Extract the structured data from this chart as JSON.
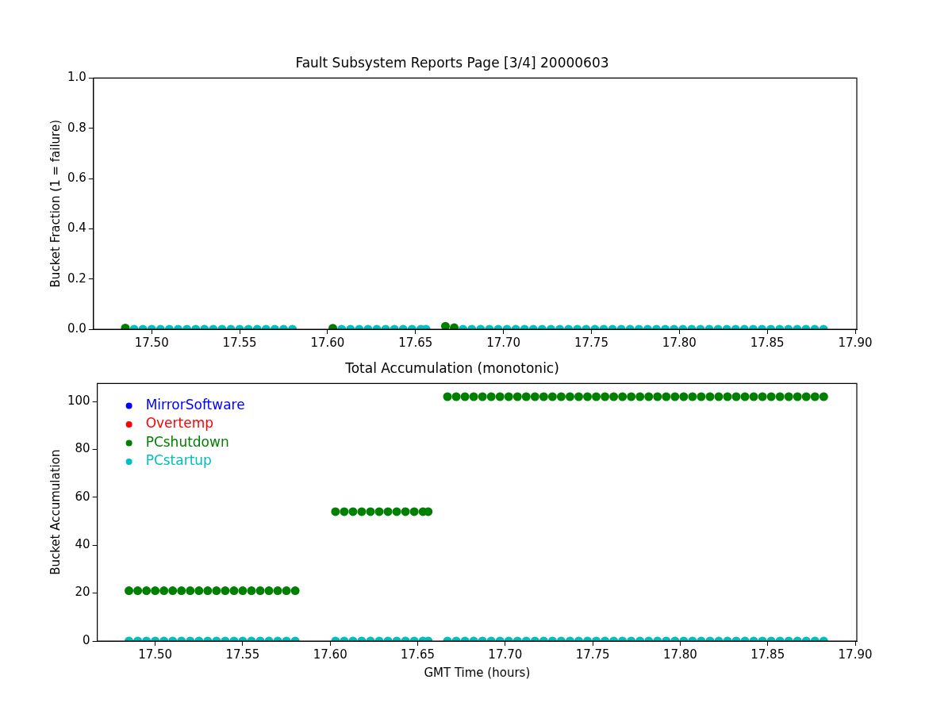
{
  "chart_data": [
    {
      "type": "scatter",
      "title": "Fault Subsystem Reports Page [3/4] 20000603",
      "ylabel": "Bucket Fraction (1 = failure)",
      "x": [
        17.485,
        17.49,
        17.495,
        17.5,
        17.505,
        17.51,
        17.515,
        17.52,
        17.525,
        17.53,
        17.535,
        17.54,
        17.545,
        17.55,
        17.555,
        17.56,
        17.565,
        17.57,
        17.575,
        17.58,
        17.603,
        17.608,
        17.613,
        17.618,
        17.623,
        17.628,
        17.633,
        17.638,
        17.643,
        17.648,
        17.653,
        17.656,
        17.667,
        17.672,
        17.677,
        17.682,
        17.687,
        17.692,
        17.697,
        17.702,
        17.707,
        17.712,
        17.717,
        17.722,
        17.727,
        17.732,
        17.737,
        17.742,
        17.747,
        17.752,
        17.757,
        17.762,
        17.767,
        17.772,
        17.777,
        17.782,
        17.787,
        17.792,
        17.797,
        17.802,
        17.807,
        17.812,
        17.817,
        17.822,
        17.827,
        17.832,
        17.837,
        17.842,
        17.847,
        17.852,
        17.857,
        17.862,
        17.867,
        17.872,
        17.877,
        17.882
      ],
      "series": [
        {
          "color": "#008000",
          "values": [
            0.005,
            null,
            null,
            null,
            null,
            null,
            null,
            null,
            null,
            null,
            null,
            null,
            null,
            null,
            null,
            null,
            null,
            null,
            null,
            null,
            0.004,
            null,
            null,
            null,
            null,
            null,
            null,
            null,
            null,
            null,
            null,
            null,
            0.012,
            0.006,
            null,
            null,
            null,
            null,
            null,
            null,
            null,
            null,
            null,
            null,
            null,
            null,
            null,
            null,
            null,
            null,
            null,
            null,
            null,
            null,
            null,
            null,
            null,
            null,
            null,
            null,
            null,
            null,
            null,
            null,
            null,
            null,
            null,
            null,
            null,
            null,
            null,
            null,
            null,
            null,
            null,
            null
          ]
        },
        {
          "color": "#00bfbf",
          "values": [
            null,
            0,
            0,
            0,
            0,
            0,
            0,
            0,
            0,
            0,
            0,
            0,
            0,
            0,
            0,
            0,
            0,
            0,
            0,
            0,
            null,
            0,
            0,
            0,
            0,
            0,
            0,
            0,
            0,
            0,
            0,
            0,
            null,
            null,
            0,
            0,
            0,
            0,
            0,
            0,
            0,
            0,
            0,
            0,
            0,
            0,
            0,
            0,
            0,
            0,
            0,
            0,
            0,
            0,
            0,
            0,
            0,
            0,
            0,
            0,
            0,
            0,
            0,
            0,
            0,
            0,
            0,
            0,
            0,
            0,
            0,
            0,
            0,
            0,
            0,
            0
          ]
        }
      ],
      "xlim": [
        17.4669,
        17.9009
      ],
      "xticks": [
        {
          "value": 17.5,
          "label": "17.50"
        },
        {
          "value": 17.55,
          "label": "17.55"
        },
        {
          "value": 17.6,
          "label": "17.60"
        },
        {
          "value": 17.65,
          "label": "17.65"
        },
        {
          "value": 17.7,
          "label": "17.70"
        },
        {
          "value": 17.75,
          "label": "17.75"
        },
        {
          "value": 17.8,
          "label": "17.80"
        },
        {
          "value": 17.85,
          "label": "17.85"
        },
        {
          "value": 17.9,
          "label": "17.90"
        }
      ],
      "ylim": [
        0,
        1
      ],
      "yticks": [
        {
          "value": 0,
          "label": "0.0"
        },
        {
          "value": 0.2,
          "label": "0.2"
        },
        {
          "value": 0.4,
          "label": "0.4"
        },
        {
          "value": 0.6,
          "label": "0.6"
        },
        {
          "value": 0.8,
          "label": "0.8"
        },
        {
          "value": 1,
          "label": "1.0"
        }
      ],
      "marker": "circle",
      "grid": false,
      "legend": false
    },
    {
      "type": "scatter",
      "title": "Total Accumulation (monotonic)",
      "xlabel": "GMT Time (hours)",
      "ylabel": "Bucket Accumulation",
      "x": [
        17.485,
        17.49,
        17.495,
        17.5,
        17.505,
        17.51,
        17.515,
        17.52,
        17.525,
        17.53,
        17.535,
        17.54,
        17.545,
        17.55,
        17.555,
        17.56,
        17.565,
        17.57,
        17.575,
        17.58,
        17.603,
        17.608,
        17.613,
        17.618,
        17.623,
        17.628,
        17.633,
        17.638,
        17.643,
        17.648,
        17.653,
        17.656,
        17.667,
        17.672,
        17.677,
        17.682,
        17.687,
        17.692,
        17.697,
        17.702,
        17.707,
        17.712,
        17.717,
        17.722,
        17.727,
        17.732,
        17.737,
        17.742,
        17.747,
        17.752,
        17.757,
        17.762,
        17.767,
        17.772,
        17.777,
        17.782,
        17.787,
        17.792,
        17.797,
        17.802,
        17.807,
        17.812,
        17.817,
        17.822,
        17.827,
        17.832,
        17.837,
        17.842,
        17.847,
        17.852,
        17.857,
        17.862,
        17.867,
        17.872,
        17.877,
        17.882
      ],
      "series": [
        {
          "name": "MirrorSoftware",
          "color": "#0000ff",
          "values": [
            null,
            null,
            null,
            null,
            null,
            null,
            null,
            null,
            null,
            null,
            null,
            null,
            null,
            null,
            null,
            null,
            null,
            null,
            null,
            null,
            null,
            null,
            null,
            null,
            null,
            null,
            null,
            null,
            null,
            null,
            null,
            null,
            null,
            null,
            null,
            null,
            null,
            null,
            null,
            null,
            null,
            null,
            null,
            null,
            null,
            null,
            null,
            null,
            null,
            null,
            null,
            null,
            null,
            null,
            null,
            null,
            null,
            null,
            null,
            null,
            null,
            null,
            null,
            null,
            null,
            null,
            null,
            null,
            null,
            null,
            null,
            null,
            null,
            null,
            null,
            null
          ]
        },
        {
          "name": "Overtemp",
          "color": "#ff0000",
          "values": [
            null,
            null,
            null,
            null,
            null,
            null,
            null,
            null,
            null,
            null,
            null,
            null,
            null,
            null,
            null,
            null,
            null,
            null,
            null,
            null,
            null,
            null,
            null,
            null,
            null,
            null,
            null,
            null,
            null,
            null,
            null,
            null,
            null,
            null,
            null,
            null,
            null,
            null,
            null,
            null,
            null,
            null,
            null,
            null,
            null,
            null,
            null,
            null,
            null,
            null,
            null,
            null,
            null,
            null,
            null,
            null,
            null,
            null,
            null,
            null,
            null,
            null,
            null,
            null,
            null,
            null,
            null,
            null,
            null,
            null,
            null,
            null,
            null,
            null,
            null,
            null
          ]
        },
        {
          "name": "PCshutdown",
          "color": "#008000",
          "values": [
            21,
            21,
            21,
            21,
            21,
            21,
            21,
            21,
            21,
            21,
            21,
            21,
            21,
            21,
            21,
            21,
            21,
            21,
            21,
            21,
            54,
            54,
            54,
            54,
            54,
            54,
            54,
            54,
            54,
            54,
            54,
            54,
            102,
            102,
            102,
            102,
            102,
            102,
            102,
            102,
            102,
            102,
            102,
            102,
            102,
            102,
            102,
            102,
            102,
            102,
            102,
            102,
            102,
            102,
            102,
            102,
            102,
            102,
            102,
            102,
            102,
            102,
            102,
            102,
            102,
            102,
            102,
            102,
            102,
            102,
            102,
            102,
            102,
            102,
            102,
            102
          ]
        },
        {
          "name": "PCstartup",
          "color": "#00bfbf",
          "values": [
            0,
            0,
            0,
            0,
            0,
            0,
            0,
            0,
            0,
            0,
            0,
            0,
            0,
            0,
            0,
            0,
            0,
            0,
            0,
            0,
            0,
            0,
            0,
            0,
            0,
            0,
            0,
            0,
            0,
            0,
            0,
            0,
            0,
            0,
            0,
            0,
            0,
            0,
            0,
            0,
            0,
            0,
            0,
            0,
            0,
            0,
            0,
            0,
            0,
            0,
            0,
            0,
            0,
            0,
            0,
            0,
            0,
            0,
            0,
            0,
            0,
            0,
            0,
            0,
            0,
            0,
            0,
            0,
            0,
            0,
            0,
            0,
            0,
            0,
            0,
            0
          ]
        }
      ],
      "xlim": [
        17.4669,
        17.9009
      ],
      "xticks": [
        {
          "value": 17.5,
          "label": "17.50"
        },
        {
          "value": 17.55,
          "label": "17.55"
        },
        {
          "value": 17.6,
          "label": "17.60"
        },
        {
          "value": 17.65,
          "label": "17.65"
        },
        {
          "value": 17.7,
          "label": "17.70"
        },
        {
          "value": 17.75,
          "label": "17.75"
        },
        {
          "value": 17.8,
          "label": "17.80"
        },
        {
          "value": 17.85,
          "label": "17.85"
        },
        {
          "value": 17.9,
          "label": "17.90"
        }
      ],
      "ylim": [
        0,
        107.5
      ],
      "yticks": [
        0,
        20,
        40,
        60,
        80,
        100
      ],
      "marker": "circle",
      "grid": false,
      "legend": "top left"
    }
  ]
}
